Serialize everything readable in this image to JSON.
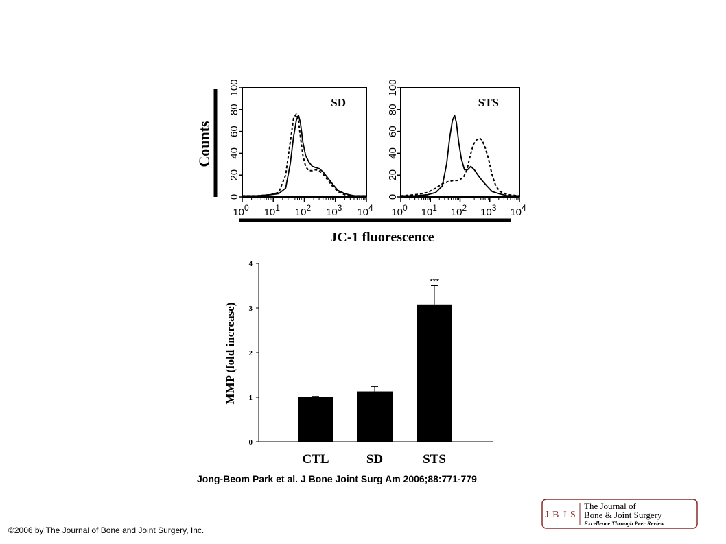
{
  "chart_data": [
    {
      "type": "line",
      "xlabel": "JC-1 fluorescence",
      "ylabel": "Counts",
      "shared_labels": true,
      "panels": [
        {
          "label": "SD",
          "xscale": "log",
          "xlim": [
            1,
            10000
          ],
          "ylim": [
            0,
            100
          ],
          "x_ticks": [
            {
              "base": "10",
              "exp": "0"
            },
            {
              "base": "10",
              "exp": "1"
            },
            {
              "base": "10",
              "exp": "2"
            },
            {
              "base": "10",
              "exp": "3"
            },
            {
              "base": "10",
              "exp": "4"
            }
          ],
          "y_ticks": [
            "0",
            "20",
            "40",
            "60",
            "80",
            "100"
          ],
          "series": [
            {
              "style": "solid",
              "x": [
                1,
                3,
                8,
                15,
                25,
                35,
                45,
                55,
                65,
                75,
                90,
                110,
                140,
                180,
                230,
                300,
                400,
                550,
                800,
                1200,
                2000,
                4000,
                10000
              ],
              "y": [
                1,
                1,
                2,
                3,
                8,
                30,
                55,
                70,
                75,
                68,
                50,
                38,
                32,
                28,
                27,
                26,
                23,
                18,
                12,
                6,
                3,
                1,
                1
              ]
            },
            {
              "style": "dashed",
              "x": [
                1,
                3,
                8,
                15,
                25,
                35,
                45,
                55,
                65,
                75,
                90,
                110,
                140,
                180,
                230,
                300,
                400,
                550,
                800,
                1200,
                2000,
                4000,
                10000
              ],
              "y": [
                1,
                1,
                2,
                4,
                20,
                50,
                72,
                76,
                70,
                55,
                38,
                28,
                24,
                24,
                25,
                24,
                21,
                16,
                10,
                5,
                2,
                1,
                1
              ]
            }
          ]
        },
        {
          "label": "STS",
          "xscale": "log",
          "xlim": [
            1,
            10000
          ],
          "ylim": [
            0,
            100
          ],
          "x_ticks": [
            {
              "base": "10",
              "exp": "0"
            },
            {
              "base": "10",
              "exp": "1"
            },
            {
              "base": "10",
              "exp": "2"
            },
            {
              "base": "10",
              "exp": "3"
            },
            {
              "base": "10",
              "exp": "4"
            }
          ],
          "y_ticks": [
            "0",
            "20",
            "40",
            "60",
            "80",
            "100"
          ],
          "series": [
            {
              "style": "solid",
              "x": [
                1,
                3,
                8,
                15,
                25,
                35,
                45,
                55,
                65,
                75,
                90,
                110,
                140,
                180,
                230,
                300,
                400,
                550,
                800,
                1200,
                2000,
                4000,
                10000
              ],
              "y": [
                1,
                1,
                2,
                4,
                10,
                30,
                55,
                70,
                75,
                68,
                50,
                35,
                25,
                25,
                28,
                25,
                20,
                15,
                10,
                5,
                3,
                1,
                1
              ]
            },
            {
              "style": "dashed",
              "x": [
                1,
                3,
                8,
                15,
                25,
                40,
                60,
                80,
                100,
                130,
                170,
                220,
                280,
                350,
                450,
                550,
                700,
                900,
                1200,
                1600,
                2200,
                4000,
                10000
              ],
              "y": [
                1,
                2,
                4,
                8,
                12,
                14,
                15,
                15,
                16,
                18,
                25,
                38,
                48,
                52,
                54,
                52,
                45,
                35,
                20,
                10,
                5,
                2,
                1
              ]
            }
          ]
        }
      ]
    },
    {
      "type": "bar",
      "categories": [
        "CTL",
        "SD",
        "STS"
      ],
      "values": [
        1.0,
        1.13,
        3.08
      ],
      "errors": [
        0.02,
        0.11,
        0.42
      ],
      "annotations": [
        {
          "category": "STS",
          "text": "***"
        }
      ],
      "ylabel": "MMP (fold increase)",
      "ylim": [
        0,
        4
      ],
      "y_ticks": [
        "0",
        "1",
        "2",
        "3",
        "4"
      ]
    }
  ],
  "citation": "Jong-Beom Park et al. J Bone Joint Surg Am 2006;88:771-779",
  "copyright": "©2006 by The Journal of Bone and Joint Surgery, Inc.",
  "logo": {
    "mark": "J B J S",
    "line1": "The Journal of",
    "line2": "Bone & Joint Surgery",
    "tagline": "Excellence Through Peer Review",
    "color": "#8a2b2b"
  }
}
